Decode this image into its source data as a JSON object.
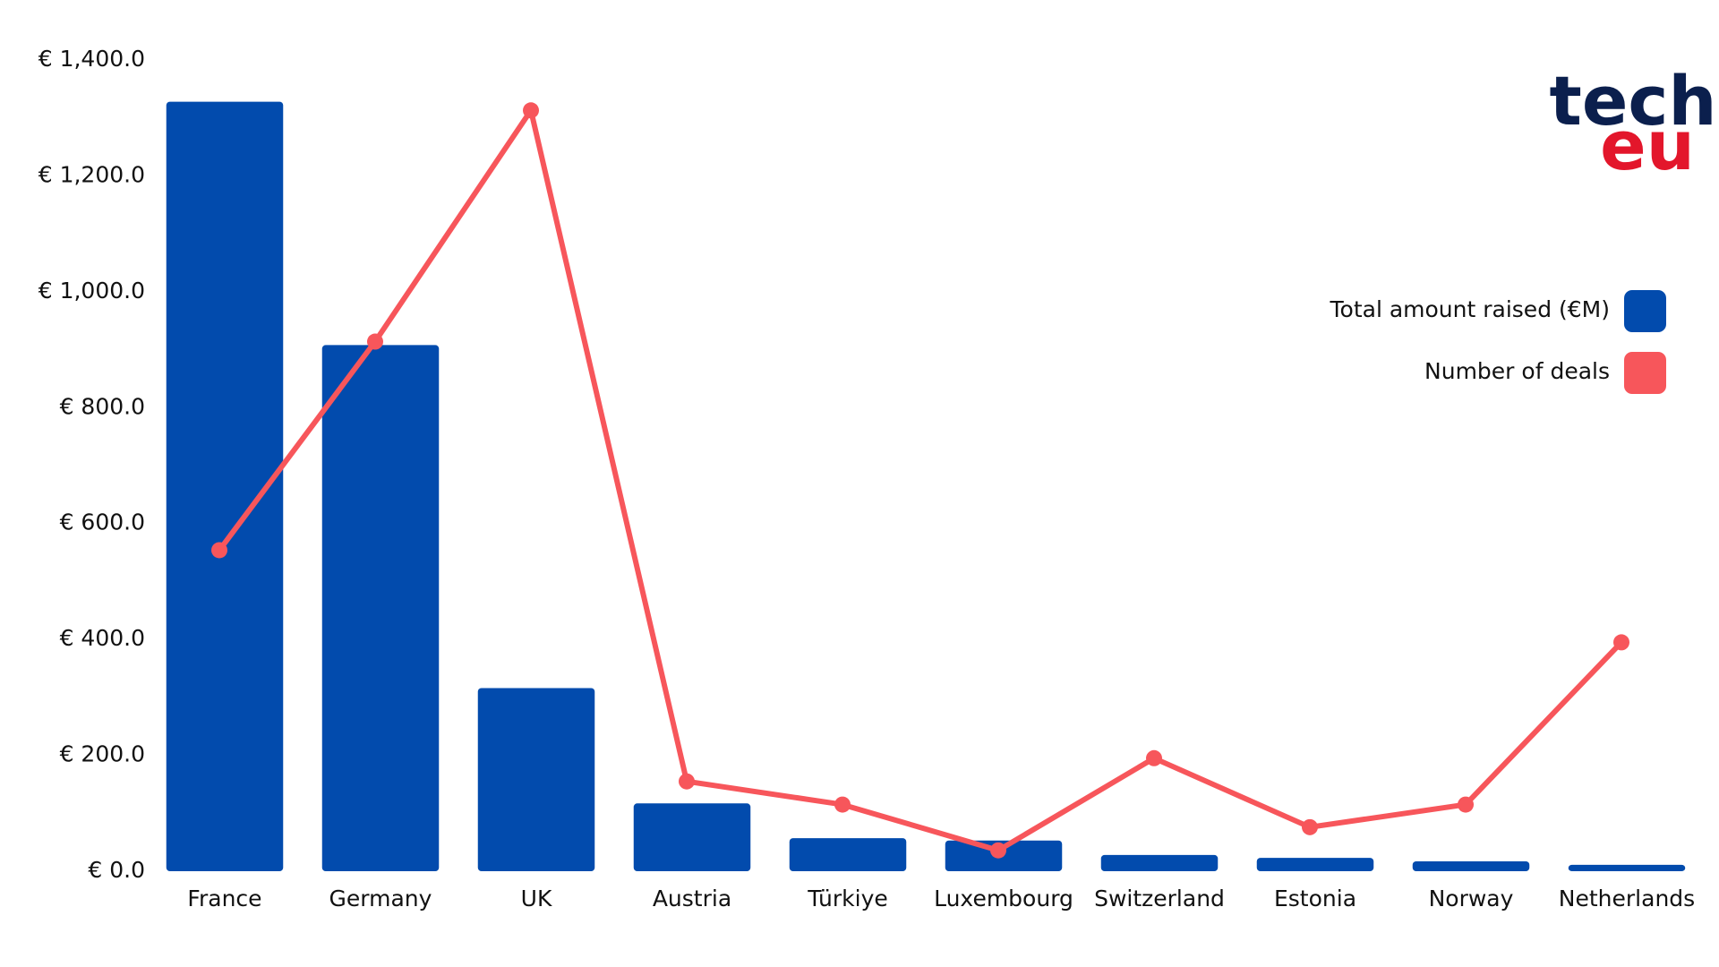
{
  "chart_data": {
    "type": "bar",
    "categories": [
      "France",
      "Germany",
      "UK",
      "Austria",
      "Türkiye",
      "Luxembourg",
      "Switzerland",
      "Estonia",
      "Norway",
      "Netherlands"
    ],
    "series": [
      {
        "name": "Total amount raised (€M)",
        "type": "bar",
        "color": "#024bad",
        "values": [
          1328,
          908,
          316,
          117,
          57,
          53,
          28,
          23,
          17,
          11
        ]
      },
      {
        "name": "Number of deals",
        "type": "line",
        "color": "#f7565b",
        "values": [
          554,
          914,
          1313,
          155,
          115,
          36,
          195,
          76,
          115,
          395
        ]
      }
    ],
    "ylim": [
      0,
      1400
    ],
    "yticks": [
      {
        "value": 0,
        "label": "€ 0.0"
      },
      {
        "value": 200,
        "label": "€ 200.0"
      },
      {
        "value": 400,
        "label": "€ 400.0"
      },
      {
        "value": 600,
        "label": "€ 600.0"
      },
      {
        "value": 800,
        "label": "€ 800.0"
      },
      {
        "value": 1000,
        "label": "€ 1,000.0"
      },
      {
        "value": 1200,
        "label": "€ 1,200.0"
      },
      {
        "value": 1400,
        "label": "€ 1,400.0"
      }
    ],
    "grid": false,
    "legend": "right",
    "logo": [
      "tech",
      "eu"
    ]
  }
}
